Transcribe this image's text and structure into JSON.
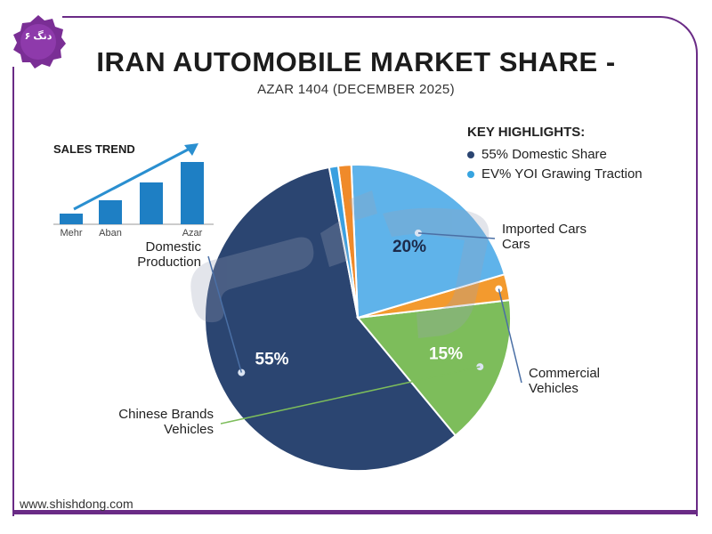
{
  "logo": {
    "text": "۶ دنگ"
  },
  "header": {
    "title": "IRAN AUTOMOBILE MARKET SHARE -",
    "subtitle": "AZAR 1404 (DECEMBER 2025)"
  },
  "highlights": {
    "heading": "KEY HIGHLIGHTS:",
    "items": [
      {
        "label": "55% Domestic Share",
        "color": "#2b4571"
      },
      {
        "label": "EV% YOI Grawing Traction",
        "color": "#37a4e0"
      }
    ]
  },
  "footer": {
    "url": "www.shishdong.com"
  },
  "colors": {
    "frame": "#6a2b86",
    "domestic": "#2b4571",
    "imported": "#5fb3ea",
    "commercial": "#f39a2e",
    "chinese": "#7dbd5b",
    "sliver_blue": "#3aa0e0",
    "sliver_orange": "#f08a2a",
    "bars": "#1e7fc4"
  },
  "chart_data": [
    {
      "type": "bar",
      "title": "SALES TREND",
      "categories": [
        "Mehr",
        "Aban",
        "",
        "Azar"
      ],
      "values": [
        12,
        27,
        47,
        70
      ],
      "ylim": [
        0,
        80
      ],
      "note": "values estimated; no y-axis shown; rising trend arrow over bars"
    },
    {
      "type": "pie",
      "slices": [
        {
          "name": "Domestic Production",
          "display_label": [
            "Domestic",
            "Production"
          ],
          "value": 55,
          "pct_label": "55%",
          "color": "#2b4571",
          "label_side": "left"
        },
        {
          "name": "Chinese Brands Vehicles",
          "display_label": [
            "Chinese Brands",
            "Vehicles"
          ],
          "value": 15,
          "pct_label": "15%",
          "color": "#7dbd5b",
          "label_side": "left"
        },
        {
          "name": "Commercial Vehicles",
          "display_label": [
            "Commercial",
            "Vehicles"
          ],
          "value": 2.6,
          "pct_label": "",
          "color": "#f39a2e",
          "label_side": "right"
        },
        {
          "name": "Imported Cars Cars",
          "display_label": [
            "Imported Cars",
            "Cars"
          ],
          "value": 20,
          "pct_label": "20%",
          "color": "#5fb3ea",
          "label_side": "right"
        },
        {
          "name": "",
          "display_label": [],
          "value": 1.3,
          "pct_label": "",
          "color": "#f08a2a",
          "label_side": ""
        },
        {
          "name": "",
          "display_label": [],
          "value": 0.9,
          "pct_label": "",
          "color": "#3aa0e0",
          "label_side": ""
        }
      ],
      "note": "printed percentages (55/15/20) are as shown; rendered slice sizes estimated from the figure"
    }
  ]
}
